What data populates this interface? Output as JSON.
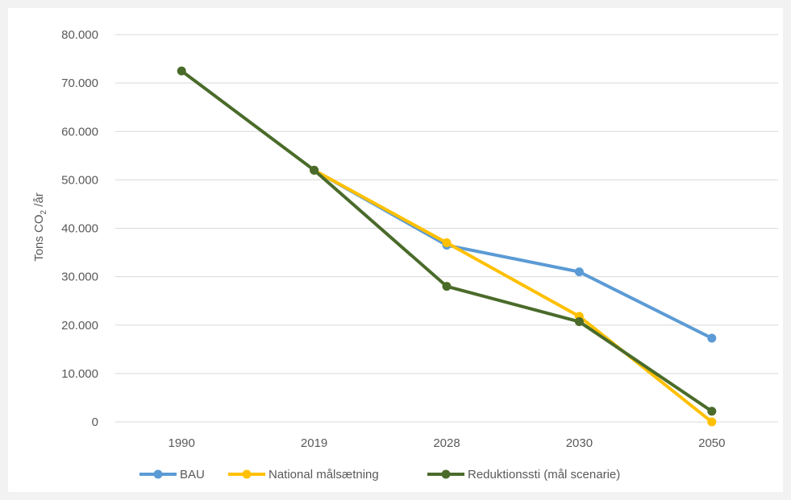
{
  "chart_data": {
    "type": "line",
    "title": "",
    "xlabel": "",
    "ylabel": {
      "prefix": "Tons CO",
      "subscript": "2",
      "suffix": " /år"
    },
    "categories": [
      "1990",
      "2019",
      "2028",
      "2030",
      "2050"
    ],
    "ylim": [
      0,
      80000
    ],
    "y_ticks": [
      0,
      10000,
      20000,
      30000,
      40000,
      50000,
      60000,
      70000,
      80000
    ],
    "y_tick_labels": [
      "0",
      "10.000",
      "20.000",
      "30.000",
      "40.000",
      "50.000",
      "60.000",
      "70.000",
      "80.000"
    ],
    "grid": true,
    "legend_position": "bottom",
    "series": [
      {
        "name": "BAU",
        "color": "#5b9bd5",
        "values": [
          null,
          52000,
          36500,
          31000,
          17300
        ]
      },
      {
        "name": "National målsætning",
        "color": "#ffc000",
        "values": [
          null,
          52000,
          37000,
          21800,
          0
        ]
      },
      {
        "name": "Reduktionssti (mål scenarie)",
        "color": "#4a6b2a",
        "values": [
          72500,
          52000,
          28000,
          20700,
          2200
        ]
      }
    ]
  }
}
